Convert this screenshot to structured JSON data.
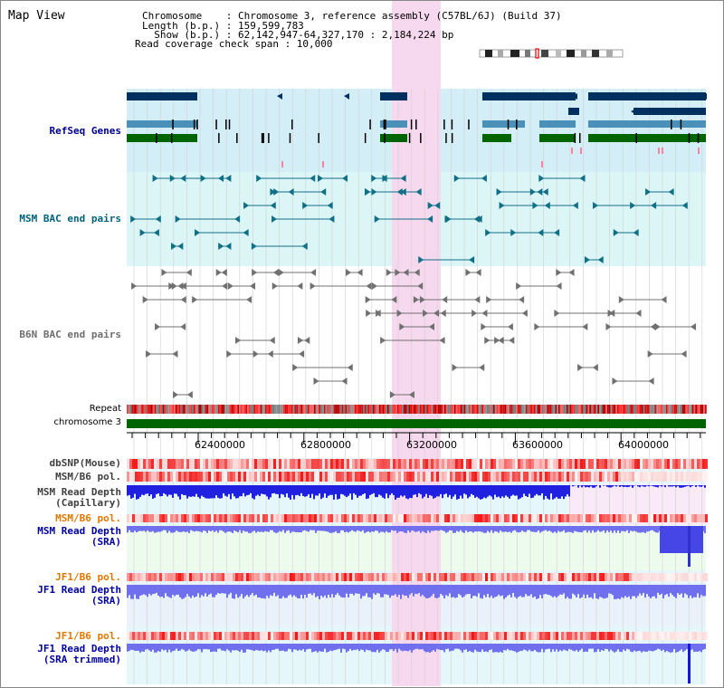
{
  "view": {
    "title": "Map View",
    "info": [
      "Chromosome    : Chromosome 3, reference assembly (C57BL/6J) (Build 37)",
      "Length (b.p.) : 159,599,783",
      "  Show (b.p.) : 62,142,947-64,327,170 : 2,184,224 bp",
      "Read coverage check span : 10,000"
    ]
  },
  "colors": {
    "track_bg_cyan": "#e6f7fb",
    "refseq_bg": "#d4eef8",
    "bac_msm_bg": "#dcf6f8",
    "highlight": "#f7d9ef",
    "refseq_dark": "#00305f",
    "refseq_mid": "#4a90b8",
    "refseq_green": "#006400",
    "msm_bac": "#0f6f86",
    "b6n_bac": "#707070",
    "chromosome_bar": "#006400",
    "read_depth_blue": "#2020e0",
    "sra_blue": "#7070ee",
    "pol_red": "#e83030"
  },
  "tracks": [
    {
      "id": "refseq",
      "label": "RefSeq Genes",
      "color": "#00008b"
    },
    {
      "id": "msm_bac",
      "label": "MSM BAC end pairs",
      "color": "#00627a"
    },
    {
      "id": "b6n_bac",
      "label": "B6N BAC end pairs",
      "color": "#6e6e6e"
    },
    {
      "id": "repeat",
      "label": "Repeat",
      "color": "#000000"
    },
    {
      "id": "chromosome",
      "label": "chromosome 3",
      "color": "#000000"
    },
    {
      "id": "dbsnp",
      "label": "dbSNP(Mouse)",
      "color": "#404040"
    },
    {
      "id": "msm_b6_pol",
      "label": "MSM/B6 pol.",
      "color": "#404040"
    },
    {
      "id": "msm_depth_cap",
      "label": "MSM Read Depth\n(Capillary)",
      "color": "#404040"
    },
    {
      "id": "msm_b6_pol2",
      "label": "MSM/B6 pol.",
      "color": "#e07800"
    },
    {
      "id": "msm_depth_sra",
      "label": "MSM Read Depth\n(SRA)",
      "color": "#0000a0"
    },
    {
      "id": "jf1_b6_pol",
      "label": "JF1/B6 pol.",
      "color": "#e07800"
    },
    {
      "id": "jf1_depth_sra",
      "label": "JF1 Read Depth\n(SRA)",
      "color": "#0000a0"
    },
    {
      "id": "jf1_b6_pol2",
      "label": "JF1/B6 pol.",
      "color": "#e07800"
    },
    {
      "id": "jf1_depth_trim",
      "label": "JF1 Read Depth\n(SRA trimmed)",
      "color": "#0000a0"
    }
  ],
  "axis": {
    "ticks": [
      "62400000",
      "62800000",
      "63200000",
      "63600000",
      "64000000"
    ]
  }
}
